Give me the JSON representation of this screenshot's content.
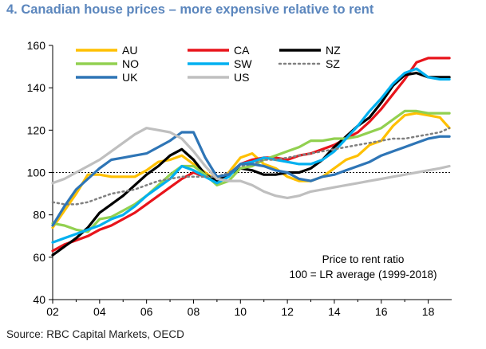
{
  "title": "4. Canadian house prices – more expensive relative to rent",
  "source": "Source: RBC Capital Markets, OECD",
  "chart_data": {
    "type": "line",
    "title": "4. Canadian house prices – more expensive relative to rent",
    "xlabel": "",
    "ylabel": "",
    "xlim": [
      2002,
      2019
    ],
    "ylim": [
      40,
      160
    ],
    "x_ticks": [
      2002,
      2004,
      2006,
      2008,
      2010,
      2012,
      2014,
      2016,
      2018
    ],
    "x_tick_labels": [
      "02",
      "04",
      "06",
      "08",
      "10",
      "12",
      "14",
      "16",
      "18"
    ],
    "y_ticks": [
      40,
      60,
      80,
      100,
      120,
      140,
      160
    ],
    "y_tick_labels": [
      "40",
      "60",
      "80",
      "100",
      "120",
      "140",
      "160"
    ],
    "grid": false,
    "reference_line": 100,
    "legend_position": "top",
    "annotation": [
      "Price to rent ratio",
      "100 = LR average (1999-2018)"
    ],
    "series": [
      {
        "name": "AU",
        "color": "#ffc000",
        "dashed": false,
        "points": [
          [
            2002,
            74
          ],
          [
            2002.5,
            82
          ],
          [
            2003,
            90
          ],
          [
            2003.5,
            99
          ],
          [
            2004,
            99
          ],
          [
            2004.5,
            98
          ],
          [
            2005,
            98
          ],
          [
            2005.5,
            98
          ],
          [
            2006,
            101
          ],
          [
            2006.5,
            105
          ],
          [
            2007,
            106
          ],
          [
            2007.5,
            108
          ],
          [
            2008,
            104
          ],
          [
            2008.5,
            100
          ],
          [
            2009,
            96
          ],
          [
            2009.5,
            100
          ],
          [
            2010,
            107
          ],
          [
            2010.5,
            109
          ],
          [
            2011,
            104
          ],
          [
            2011.5,
            102
          ],
          [
            2012,
            98
          ],
          [
            2012.5,
            96
          ],
          [
            2013,
            96
          ],
          [
            2013.5,
            98
          ],
          [
            2014,
            102
          ],
          [
            2014.5,
            106
          ],
          [
            2015,
            108
          ],
          [
            2015.5,
            113
          ],
          [
            2016,
            115
          ],
          [
            2016.5,
            122
          ],
          [
            2017,
            127
          ],
          [
            2017.5,
            128
          ],
          [
            2018,
            127
          ],
          [
            2018.5,
            126
          ],
          [
            2018.9,
            121
          ]
        ]
      },
      {
        "name": "CA",
        "color": "#e8141b",
        "dashed": false,
        "points": [
          [
            2002,
            63
          ],
          [
            2002.5,
            66
          ],
          [
            2003,
            68
          ],
          [
            2003.5,
            70
          ],
          [
            2004,
            73
          ],
          [
            2004.5,
            75
          ],
          [
            2005,
            78
          ],
          [
            2005.5,
            81
          ],
          [
            2006,
            85
          ],
          [
            2006.5,
            89
          ],
          [
            2007,
            93
          ],
          [
            2007.5,
            97
          ],
          [
            2008,
            100
          ],
          [
            2008.5,
            98
          ],
          [
            2009,
            96
          ],
          [
            2009.5,
            99
          ],
          [
            2010,
            104
          ],
          [
            2010.5,
            106
          ],
          [
            2011,
            107
          ],
          [
            2011.5,
            107
          ],
          [
            2012,
            106
          ],
          [
            2012.5,
            108
          ],
          [
            2013,
            109
          ],
          [
            2013.5,
            111
          ],
          [
            2014,
            113
          ],
          [
            2014.5,
            116
          ],
          [
            2015,
            119
          ],
          [
            2015.5,
            124
          ],
          [
            2016,
            130
          ],
          [
            2016.5,
            137
          ],
          [
            2017,
            144
          ],
          [
            2017.5,
            152
          ],
          [
            2018,
            154
          ],
          [
            2018.5,
            154
          ],
          [
            2018.9,
            154
          ]
        ]
      },
      {
        "name": "NZ",
        "color": "#000000",
        "dashed": false,
        "points": [
          [
            2002,
            61
          ],
          [
            2002.5,
            65
          ],
          [
            2003,
            69
          ],
          [
            2003.5,
            74
          ],
          [
            2004,
            81
          ],
          [
            2004.5,
            85
          ],
          [
            2005,
            89
          ],
          [
            2005.5,
            94
          ],
          [
            2006,
            99
          ],
          [
            2006.5,
            103
          ],
          [
            2007,
            108
          ],
          [
            2007.5,
            111
          ],
          [
            2008,
            106
          ],
          [
            2008.5,
            99
          ],
          [
            2009,
            96
          ],
          [
            2009.5,
            99
          ],
          [
            2010,
            102
          ],
          [
            2010.5,
            101
          ],
          [
            2011,
            99
          ],
          [
            2011.5,
            99
          ],
          [
            2012,
            100
          ],
          [
            2012.5,
            100
          ],
          [
            2013,
            102
          ],
          [
            2013.5,
            106
          ],
          [
            2014,
            112
          ],
          [
            2014.5,
            117
          ],
          [
            2015,
            122
          ],
          [
            2015.5,
            126
          ],
          [
            2016,
            133
          ],
          [
            2016.5,
            141
          ],
          [
            2017,
            146
          ],
          [
            2017.5,
            147
          ],
          [
            2018,
            145
          ],
          [
            2018.5,
            145
          ],
          [
            2018.9,
            145
          ]
        ]
      },
      {
        "name": "NO",
        "color": "#92d050",
        "dashed": false,
        "points": [
          [
            2002,
            76
          ],
          [
            2002.5,
            75
          ],
          [
            2003,
            73
          ],
          [
            2003.5,
            72
          ],
          [
            2004,
            78
          ],
          [
            2004.5,
            79
          ],
          [
            2005,
            82
          ],
          [
            2005.5,
            85
          ],
          [
            2006,
            89
          ],
          [
            2006.5,
            94
          ],
          [
            2007,
            99
          ],
          [
            2007.5,
            103
          ],
          [
            2008,
            103
          ],
          [
            2008.5,
            99
          ],
          [
            2009,
            94
          ],
          [
            2009.5,
            96
          ],
          [
            2010,
            102
          ],
          [
            2010.5,
            103
          ],
          [
            2011,
            106
          ],
          [
            2011.5,
            108
          ],
          [
            2012,
            110
          ],
          [
            2012.5,
            112
          ],
          [
            2013,
            115
          ],
          [
            2013.5,
            115
          ],
          [
            2014,
            116
          ],
          [
            2014.5,
            116
          ],
          [
            2015,
            117
          ],
          [
            2015.5,
            119
          ],
          [
            2016,
            121
          ],
          [
            2016.5,
            125
          ],
          [
            2017,
            129
          ],
          [
            2017.5,
            129
          ],
          [
            2018,
            128
          ],
          [
            2018.5,
            128
          ],
          [
            2018.9,
            128
          ]
        ]
      },
      {
        "name": "SW",
        "color": "#00b0f0",
        "dashed": false,
        "points": [
          [
            2002,
            67
          ],
          [
            2002.5,
            69
          ],
          [
            2003,
            71
          ],
          [
            2003.5,
            73
          ],
          [
            2004,
            75
          ],
          [
            2004.5,
            78
          ],
          [
            2005,
            80
          ],
          [
            2005.5,
            84
          ],
          [
            2006,
            89
          ],
          [
            2006.5,
            93
          ],
          [
            2007,
            97
          ],
          [
            2007.5,
            103
          ],
          [
            2008,
            101
          ],
          [
            2008.5,
            98
          ],
          [
            2009,
            95
          ],
          [
            2009.5,
            98
          ],
          [
            2010,
            104
          ],
          [
            2010.5,
            105
          ],
          [
            2011,
            107
          ],
          [
            2011.5,
            106
          ],
          [
            2012,
            105
          ],
          [
            2012.5,
            104
          ],
          [
            2013,
            104
          ],
          [
            2013.5,
            106
          ],
          [
            2014,
            110
          ],
          [
            2014.5,
            116
          ],
          [
            2015,
            122
          ],
          [
            2015.5,
            129
          ],
          [
            2016,
            135
          ],
          [
            2016.5,
            142
          ],
          [
            2017,
            147
          ],
          [
            2017.5,
            149
          ],
          [
            2018,
            145
          ],
          [
            2018.5,
            144
          ],
          [
            2018.9,
            144
          ]
        ]
      },
      {
        "name": "SZ",
        "color": "#808080",
        "dashed": true,
        "points": [
          [
            2002,
            86
          ],
          [
            2002.5,
            85
          ],
          [
            2003,
            85
          ],
          [
            2003.5,
            86
          ],
          [
            2004,
            88
          ],
          [
            2004.5,
            90
          ],
          [
            2005,
            91
          ],
          [
            2005.5,
            92
          ],
          [
            2006,
            94
          ],
          [
            2006.5,
            96
          ],
          [
            2007,
            97
          ],
          [
            2007.5,
            98
          ],
          [
            2008,
            98
          ],
          [
            2008.5,
            98
          ],
          [
            2009,
            98
          ],
          [
            2009.5,
            100
          ],
          [
            2010,
            103
          ],
          [
            2010.5,
            104
          ],
          [
            2011,
            106
          ],
          [
            2011.5,
            106
          ],
          [
            2012,
            107
          ],
          [
            2012.5,
            108
          ],
          [
            2013,
            109
          ],
          [
            2013.5,
            110
          ],
          [
            2014,
            111
          ],
          [
            2014.5,
            112
          ],
          [
            2015,
            113
          ],
          [
            2015.5,
            114
          ],
          [
            2016,
            115
          ],
          [
            2016.5,
            116
          ],
          [
            2017,
            116
          ],
          [
            2017.5,
            117
          ],
          [
            2018,
            118
          ],
          [
            2018.5,
            119
          ],
          [
            2018.9,
            121
          ]
        ]
      },
      {
        "name": "UK",
        "color": "#2e75b6",
        "dashed": false,
        "points": [
          [
            2002,
            75
          ],
          [
            2002.5,
            84
          ],
          [
            2003,
            92
          ],
          [
            2003.5,
            97
          ],
          [
            2004,
            102
          ],
          [
            2004.5,
            106
          ],
          [
            2005,
            107
          ],
          [
            2005.5,
            108
          ],
          [
            2006,
            109
          ],
          [
            2006.5,
            112
          ],
          [
            2007,
            115
          ],
          [
            2007.5,
            119
          ],
          [
            2008,
            119
          ],
          [
            2008.5,
            107
          ],
          [
            2009,
            98
          ],
          [
            2009.5,
            99
          ],
          [
            2010,
            104
          ],
          [
            2010.5,
            104
          ],
          [
            2011,
            103
          ],
          [
            2011.5,
            101
          ],
          [
            2012,
            100
          ],
          [
            2012.5,
            97
          ],
          [
            2013,
            96
          ],
          [
            2013.5,
            98
          ],
          [
            2014,
            99
          ],
          [
            2014.5,
            101
          ],
          [
            2015,
            103
          ],
          [
            2015.5,
            105
          ],
          [
            2016,
            108
          ],
          [
            2016.5,
            110
          ],
          [
            2017,
            112
          ],
          [
            2017.5,
            114
          ],
          [
            2018,
            116
          ],
          [
            2018.5,
            117
          ],
          [
            2018.9,
            117
          ]
        ]
      },
      {
        "name": "US",
        "color": "#bfbfbf",
        "dashed": false,
        "points": [
          [
            2002,
            95
          ],
          [
            2002.5,
            97
          ],
          [
            2003,
            100
          ],
          [
            2003.5,
            103
          ],
          [
            2004,
            106
          ],
          [
            2004.5,
            110
          ],
          [
            2005,
            114
          ],
          [
            2005.5,
            118
          ],
          [
            2006,
            121
          ],
          [
            2006.5,
            120
          ],
          [
            2007,
            119
          ],
          [
            2007.5,
            116
          ],
          [
            2008,
            110
          ],
          [
            2008.5,
            103
          ],
          [
            2009,
            97
          ],
          [
            2009.5,
            96
          ],
          [
            2010,
            96
          ],
          [
            2010.5,
            94
          ],
          [
            2011,
            91
          ],
          [
            2011.5,
            89
          ],
          [
            2012,
            88
          ],
          [
            2012.5,
            89
          ],
          [
            2013,
            91
          ],
          [
            2013.5,
            92
          ],
          [
            2014,
            93
          ],
          [
            2014.5,
            94
          ],
          [
            2015,
            95
          ],
          [
            2015.5,
            96
          ],
          [
            2016,
            97
          ],
          [
            2016.5,
            98
          ],
          [
            2017,
            99
          ],
          [
            2017.5,
            100
          ],
          [
            2018,
            101
          ],
          [
            2018.5,
            102
          ],
          [
            2018.9,
            103
          ]
        ]
      }
    ]
  }
}
